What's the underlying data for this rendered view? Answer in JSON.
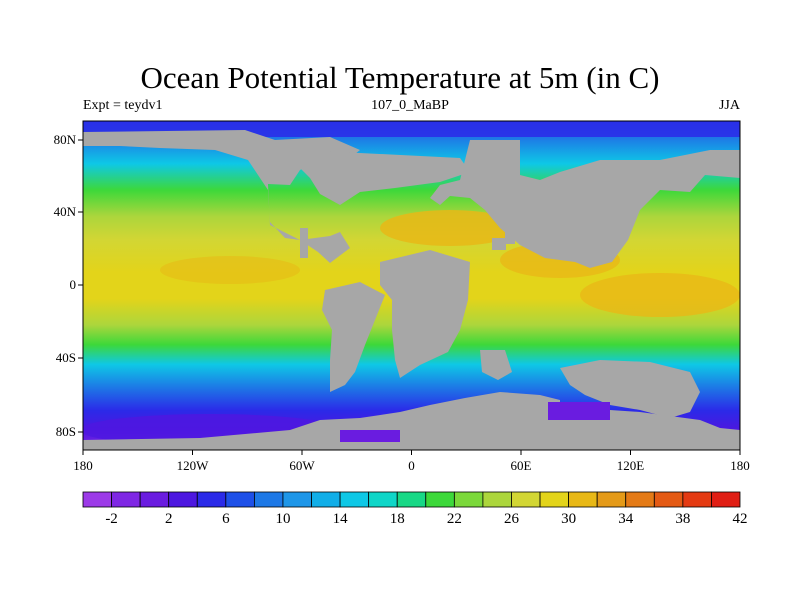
{
  "title": "Ocean Potential Temperature at 5m (in C)",
  "subtitle_left": "Expt = teydv1",
  "subtitle_center": "107_0_MaBP",
  "subtitle_right": "JJA",
  "lat_labels": [
    "80N",
    "40N",
    "0",
    "40S",
    "80S"
  ],
  "lon_labels": [
    "180",
    "120W",
    "60W",
    "0",
    "60E",
    "120E",
    "180"
  ],
  "colorbar": {
    "labels": [
      "-2",
      "2",
      "6",
      "10",
      "14",
      "18",
      "22",
      "26",
      "30",
      "34",
      "38",
      "42"
    ],
    "colors": [
      "#9c3ae8",
      "#7f27e4",
      "#6a1ce0",
      "#4d17e0",
      "#2b2ae8",
      "#1e50e8",
      "#1d78e6",
      "#1e96e8",
      "#11aee8",
      "#0ec8e6",
      "#0fd6c8",
      "#18d886",
      "#3dd83a",
      "#7bd83a",
      "#acd63c",
      "#d2d634",
      "#e3d41a",
      "#e8b816",
      "#e49a18",
      "#e47a16",
      "#e45a14",
      "#e43a12",
      "#e01e14"
    ]
  },
  "colors": {
    "land": "#a7a7a7",
    "frame": "#000000"
  }
}
